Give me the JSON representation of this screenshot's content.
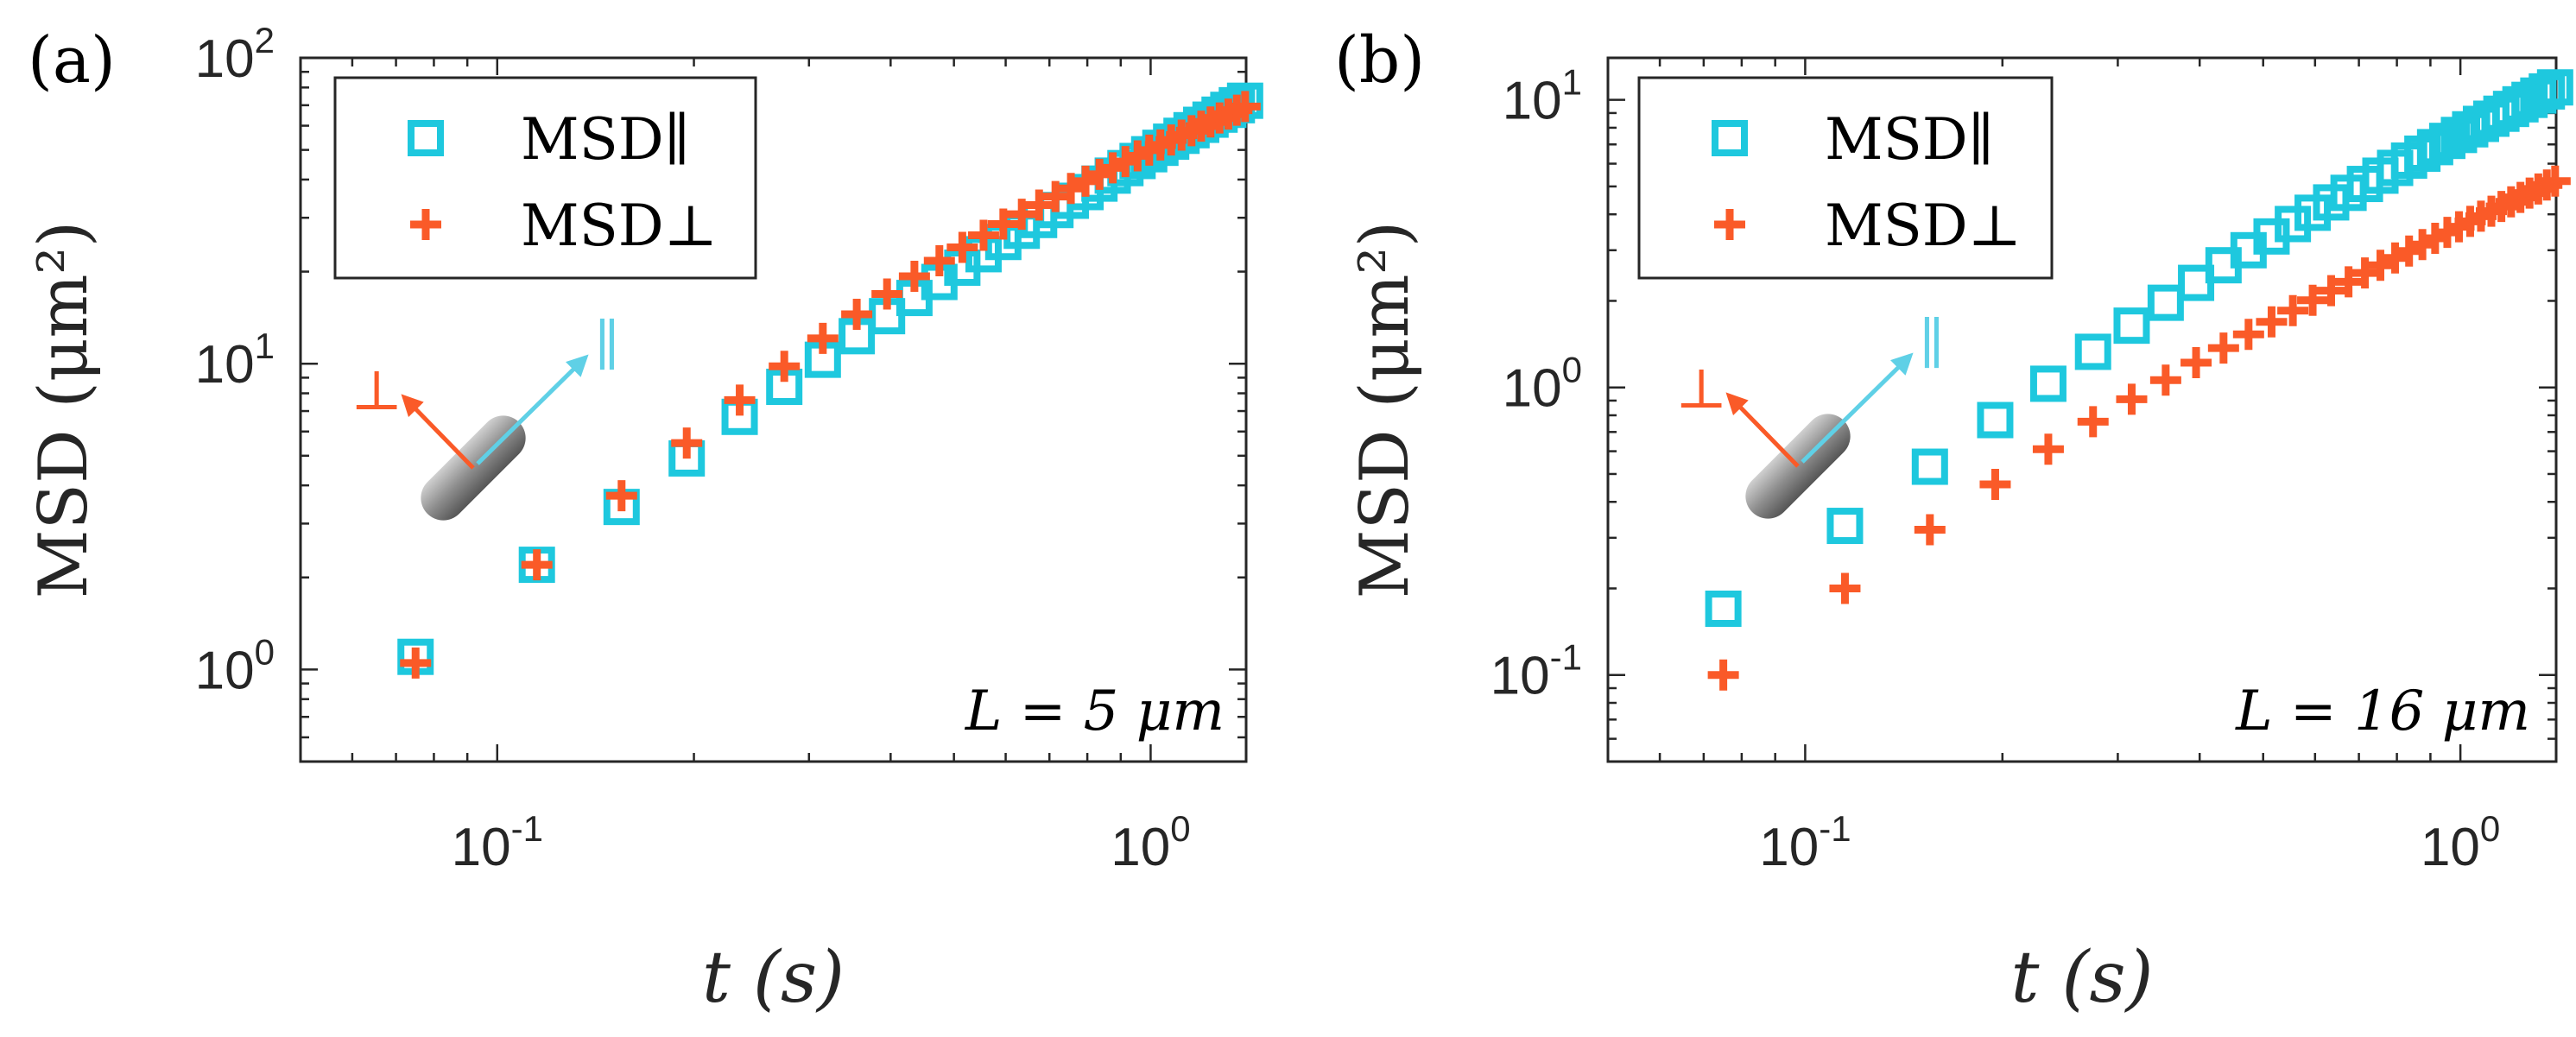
{
  "chart_data": [
    {
      "panel_label": "(a)",
      "type": "scatter",
      "x_scale": "log",
      "y_scale": "log",
      "xlim": [
        0.05,
        1.4
      ],
      "ylim": [
        0.5,
        100
      ],
      "xlabel": "t (s)",
      "ylabel": "MSD (μm²)",
      "x_ticks": [
        {
          "value": 0.1,
          "base": "10",
          "exp": "-1"
        },
        {
          "value": 1,
          "base": "10",
          "exp": "0"
        }
      ],
      "y_ticks": [
        {
          "value": 1,
          "base": "10",
          "exp": "0"
        },
        {
          "value": 10,
          "base": "10",
          "exp": "1"
        },
        {
          "value": 100,
          "base": "10",
          "exp": "2"
        }
      ],
      "legend_placement": "top-left",
      "annotation": "L = 5 μm",
      "x": [
        0.075,
        0.115,
        0.155,
        0.195,
        0.235,
        0.275,
        0.315,
        0.355,
        0.395,
        0.435,
        0.475,
        0.515,
        0.555,
        0.595,
        0.635,
        0.675,
        0.715,
        0.755,
        0.795,
        0.835,
        0.875,
        0.915,
        0.955,
        0.995,
        1.035,
        1.075,
        1.115,
        1.155,
        1.195,
        1.235,
        1.275,
        1.315,
        1.355,
        1.395
      ],
      "series": [
        {
          "name": "MSD∥",
          "marker": "square",
          "color": "#1ec8de",
          "values": [
            1.1,
            2.2,
            3.4,
            4.9,
            6.7,
            8.4,
            10.3,
            12.3,
            14.3,
            16.4,
            18.5,
            20.6,
            22.8,
            25.0,
            27.2,
            29.5,
            31.8,
            34.1,
            36.4,
            38.8,
            41.2,
            43.6,
            46.0,
            48.4,
            50.8,
            53.2,
            55.6,
            58.0,
            60.4,
            62.8,
            65.2,
            67.6,
            70.0,
            72.4
          ]
        },
        {
          "name": "MSD⊥",
          "marker": "plus",
          "color": "#fa5a28",
          "values": [
            1.05,
            2.2,
            3.7,
            5.5,
            7.6,
            9.8,
            12.1,
            14.5,
            16.9,
            19.3,
            21.7,
            24.0,
            26.3,
            28.6,
            30.8,
            33.0,
            35.2,
            37.4,
            39.5,
            41.6,
            43.7,
            45.8,
            47.8,
            49.9,
            51.9,
            53.9,
            55.9,
            57.8,
            59.8,
            61.7,
            63.6,
            65.5,
            67.4,
            69.3
          ]
        }
      ]
    },
    {
      "panel_label": "(b)",
      "type": "scatter",
      "x_scale": "log",
      "y_scale": "log",
      "xlim": [
        0.05,
        1.4
      ],
      "ylim": [
        0.05,
        14
      ],
      "xlabel": "t (s)",
      "ylabel": "MSD (μm²)",
      "x_ticks": [
        {
          "value": 0.1,
          "base": "10",
          "exp": "-1"
        },
        {
          "value": 1,
          "base": "10",
          "exp": "0"
        }
      ],
      "y_ticks": [
        {
          "value": 0.1,
          "base": "10",
          "exp": "-1"
        },
        {
          "value": 1,
          "base": "10",
          "exp": "0"
        },
        {
          "value": 10,
          "base": "10",
          "exp": "1"
        }
      ],
      "legend_placement": "top-left",
      "annotation": "L = 16 μm",
      "x": [
        0.075,
        0.115,
        0.155,
        0.195,
        0.235,
        0.275,
        0.315,
        0.355,
        0.395,
        0.435,
        0.475,
        0.515,
        0.555,
        0.595,
        0.635,
        0.675,
        0.715,
        0.755,
        0.795,
        0.835,
        0.875,
        0.915,
        0.955,
        0.995,
        1.035,
        1.075,
        1.115,
        1.155,
        1.195,
        1.235,
        1.275,
        1.315,
        1.355,
        1.395
      ],
      "series": [
        {
          "name": "MSD∥",
          "marker": "square",
          "color": "#1ec8de",
          "values": [
            0.17,
            0.33,
            0.53,
            0.77,
            1.03,
            1.33,
            1.64,
            1.97,
            2.31,
            2.66,
            3.0,
            3.35,
            3.7,
            4.05,
            4.4,
            4.75,
            5.1,
            5.45,
            5.8,
            6.15,
            6.5,
            6.85,
            7.2,
            7.55,
            7.9,
            8.25,
            8.6,
            8.95,
            9.3,
            9.65,
            10.0,
            10.35,
            10.7,
            11.05
          ]
        },
        {
          "name": "MSD⊥",
          "marker": "plus",
          "color": "#fa5a28",
          "values": [
            0.1,
            0.2,
            0.32,
            0.46,
            0.61,
            0.76,
            0.91,
            1.06,
            1.22,
            1.37,
            1.53,
            1.69,
            1.85,
            2.01,
            2.17,
            2.33,
            2.5,
            2.66,
            2.82,
            2.98,
            3.14,
            3.3,
            3.46,
            3.62,
            3.78,
            3.94,
            4.1,
            4.26,
            4.42,
            4.58,
            4.74,
            4.9,
            5.06,
            5.22
          ]
        }
      ]
    }
  ]
}
